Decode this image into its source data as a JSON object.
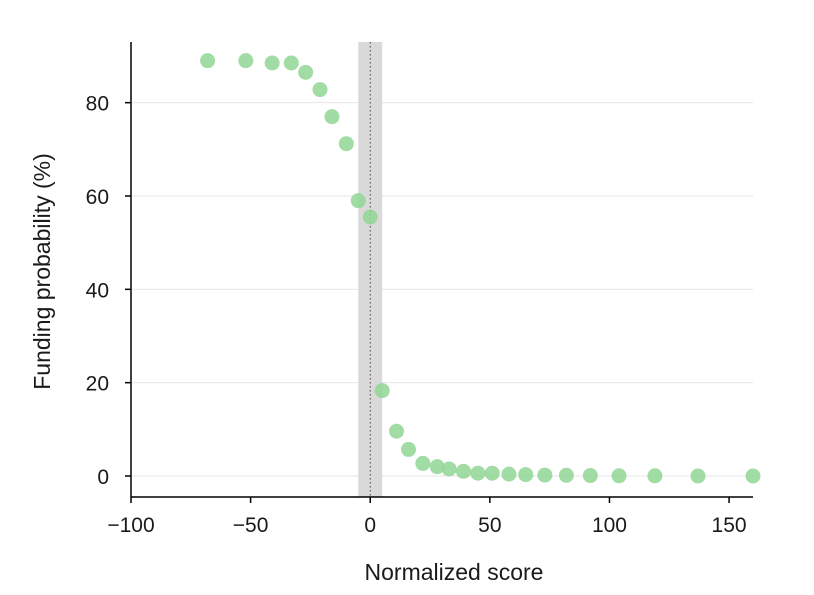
{
  "chart_data": {
    "type": "scatter",
    "xlabel": "Normalized score",
    "ylabel": "Funding probability (%)",
    "xlim": [
      -100,
      160
    ],
    "ylim": [
      -4.5,
      93
    ],
    "x_ticks": [
      -100,
      -50,
      0,
      50,
      100,
      150
    ],
    "x_tick_labels": [
      "−100",
      "−50",
      "0",
      "50",
      "100",
      "150"
    ],
    "y_ticks": [
      0,
      20,
      40,
      60,
      80
    ],
    "y_tick_labels": [
      "0",
      "20",
      "40",
      "60",
      "80"
    ],
    "grid": "horizontal",
    "shaded_band": [
      -5,
      5
    ],
    "reference_line_x": 0,
    "colors": {
      "points": "#8fd694",
      "band": "#d9d9d9"
    },
    "series": [
      {
        "x": [
          -68,
          -52,
          -41,
          -33,
          -27,
          -21,
          -16,
          -10,
          -5,
          0,
          5,
          11,
          16,
          22,
          28,
          33,
          39,
          45,
          51,
          58,
          65,
          73,
          82,
          92,
          104,
          119,
          137,
          160
        ],
        "y": [
          89,
          89,
          88.5,
          88.5,
          86.5,
          82.8,
          77,
          71.2,
          59,
          55.5,
          18.3,
          9.6,
          5.7,
          2.7,
          2,
          1.5,
          1,
          0.6,
          0.6,
          0.4,
          0.3,
          0.2,
          0.15,
          0.1,
          0.05,
          0.05,
          0,
          0
        ]
      }
    ]
  }
}
